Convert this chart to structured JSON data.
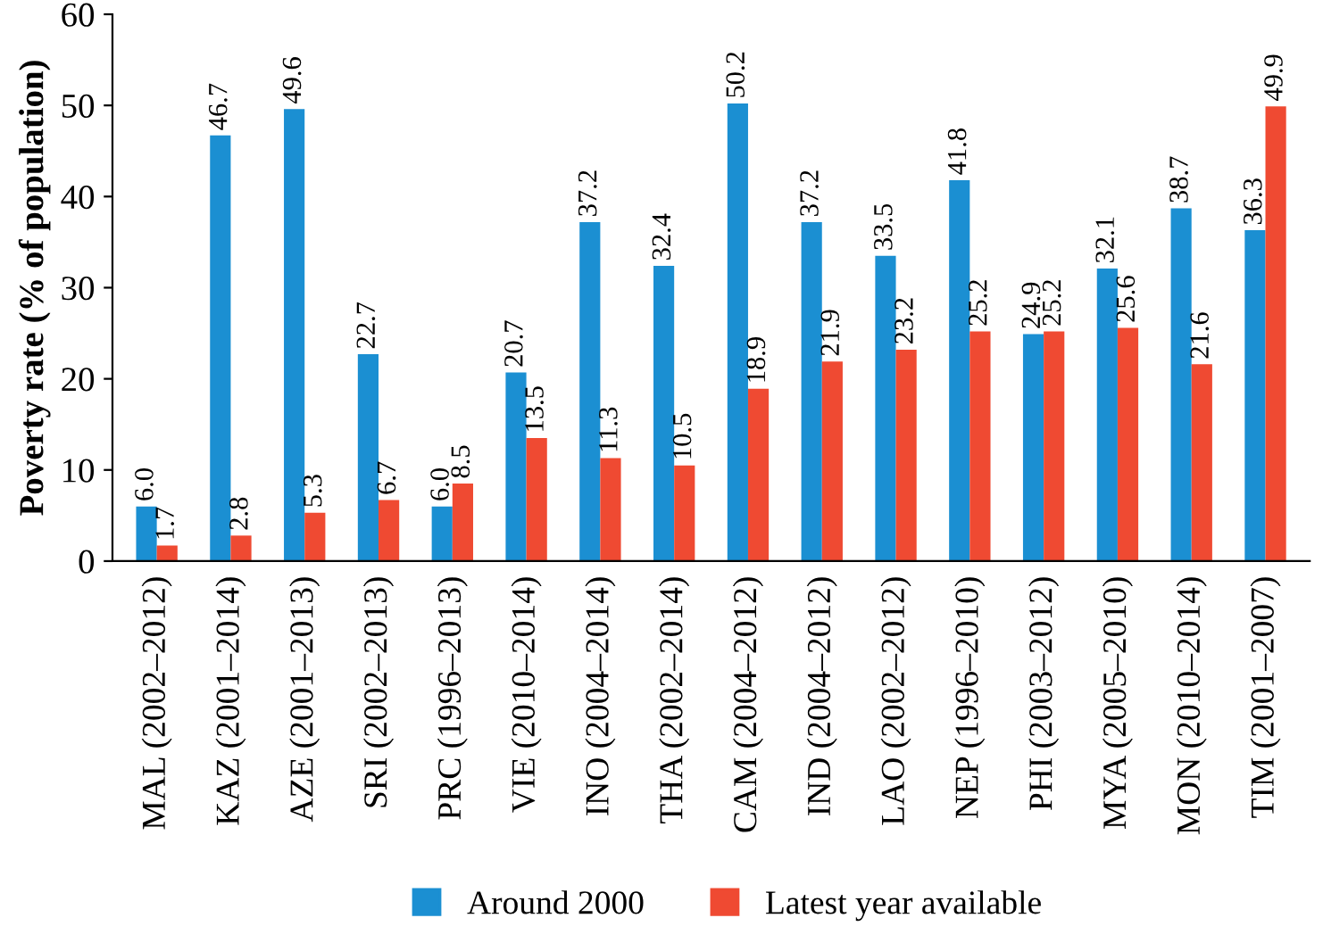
{
  "chart_data": {
    "type": "bar",
    "ylabel": "Poverty rate (% of population)",
    "categories": [
      "MAL (2002–2012)",
      "KAZ (2001–2014)",
      "AZE (2001–2013)",
      "SRI (2002–2013)",
      "PRC (1996–2013)",
      "VIE (2010–2014)",
      "INO (2004–2014)",
      "THA (2002–2014)",
      "CAM (2004–2012)",
      "IND (2004–2012)",
      "LAO (2002–2012)",
      "NEP (1996–2010)",
      "PHI (2003–2012)",
      "MYA (2005–2010)",
      "MON (2010–2014)",
      "TIM (2001–2007)"
    ],
    "series": [
      {
        "name": "Around 2000",
        "color": "#1b8fd2",
        "values": [
          6.0,
          46.7,
          49.6,
          22.7,
          6.0,
          20.7,
          37.2,
          32.4,
          50.2,
          37.2,
          33.5,
          41.8,
          24.9,
          32.1,
          38.7,
          36.3
        ],
        "value_labels": [
          "6.0",
          "46.7",
          "49.6",
          "22.7",
          "6.0",
          "20.7",
          "37.2",
          "32.4",
          "50.2",
          "37.2",
          "33.5",
          "41.8",
          "24.9",
          "32.1",
          "38.7",
          "36.3"
        ]
      },
      {
        "name": "Latest year available",
        "color": "#ef4a32",
        "values": [
          1.7,
          2.8,
          5.3,
          6.7,
          8.5,
          13.5,
          11.3,
          10.5,
          18.9,
          21.9,
          23.2,
          25.2,
          25.2,
          25.6,
          21.6,
          49.9
        ],
        "value_labels": [
          "1.7",
          "2.8",
          "5.3",
          "6.7",
          "8.5",
          "13.5",
          "11.3",
          "10.5",
          "18.9",
          "21.9",
          "23.2",
          "25.2",
          "25.2",
          "25.6",
          "21.6",
          "49.9"
        ]
      }
    ],
    "ylim": [
      0,
      60
    ],
    "yticks": [
      0,
      10,
      20,
      30,
      40,
      50,
      60
    ],
    "grid": false,
    "legend": "bottom"
  }
}
